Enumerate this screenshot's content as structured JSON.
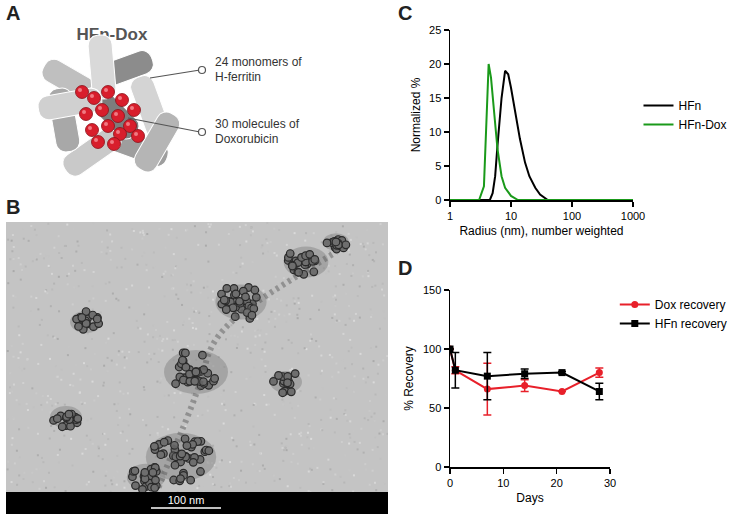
{
  "panel_letters": [
    "A",
    "B",
    "C",
    "D"
  ],
  "diagram": {
    "title": "HFn-Dox",
    "labels": [
      "24 monomers of H-ferritin",
      "30 molecules of Doxorubicin"
    ]
  },
  "micrograph": {
    "scale_bar": "100 nm"
  },
  "chart_data": [
    {
      "type": "line",
      "x_label": "Radius (nm), number weighted",
      "y_label": "Normalized %",
      "log": "x",
      "grid": false,
      "legend": "right",
      "xlim": [
        1,
        1000
      ],
      "xticks": [
        1,
        10,
        100,
        1000
      ],
      "ylim": [
        0,
        25
      ],
      "yticks": [
        0,
        5,
        10,
        15,
        20,
        25
      ],
      "series": [
        {
          "name": "HFn",
          "color": "#000000",
          "line_style": "solid",
          "x": [
            1,
            3,
            4.5,
            5,
            5.5,
            6,
            7,
            8,
            9,
            10,
            12,
            14,
            17,
            20,
            25,
            30,
            40,
            1000
          ],
          "values": [
            0,
            0,
            0,
            1,
            3.5,
            8,
            15,
            19,
            18.5,
            16.5,
            12.5,
            9,
            5.5,
            3.5,
            1.8,
            0.8,
            0,
            0
          ]
        },
        {
          "name": "HFn-Dox",
          "color": "#1a9a1a",
          "line_style": "solid",
          "x": [
            1,
            3,
            3.6,
            4,
            4.3,
            4.7,
            5,
            5.5,
            6,
            7,
            8,
            10,
            13,
            1000
          ],
          "values": [
            0,
            0,
            2,
            14,
            20,
            18,
            15,
            11,
            7.5,
            3.5,
            1.8,
            0.6,
            0,
            0
          ]
        }
      ]
    },
    {
      "type": "line",
      "x_label": "Days",
      "y_label": "% Recovery",
      "grid": false,
      "legend": "top right",
      "xlim": [
        0,
        30
      ],
      "xticks": [
        0,
        10,
        20,
        30
      ],
      "ylim": [
        0,
        150
      ],
      "yticks": [
        0,
        50,
        100,
        150
      ],
      "series": [
        {
          "name": "Dox recovery",
          "color": "#e8202a",
          "marker": "circle",
          "line_style": "solid",
          "x": [
            0,
            1,
            7,
            14,
            21,
            28
          ],
          "values": [
            100,
            82,
            66,
            69,
            64,
            80
          ],
          "error": [
            0,
            3,
            22,
            5,
            0,
            4
          ]
        },
        {
          "name": "HFn recovery",
          "color": "#000000",
          "marker": "square",
          "line_style": "solid",
          "x": [
            0,
            1,
            7,
            14,
            21,
            28
          ],
          "values": [
            100,
            82,
            77,
            79,
            80,
            64
          ],
          "error": [
            0,
            15,
            20,
            4,
            1,
            7
          ]
        }
      ]
    }
  ]
}
